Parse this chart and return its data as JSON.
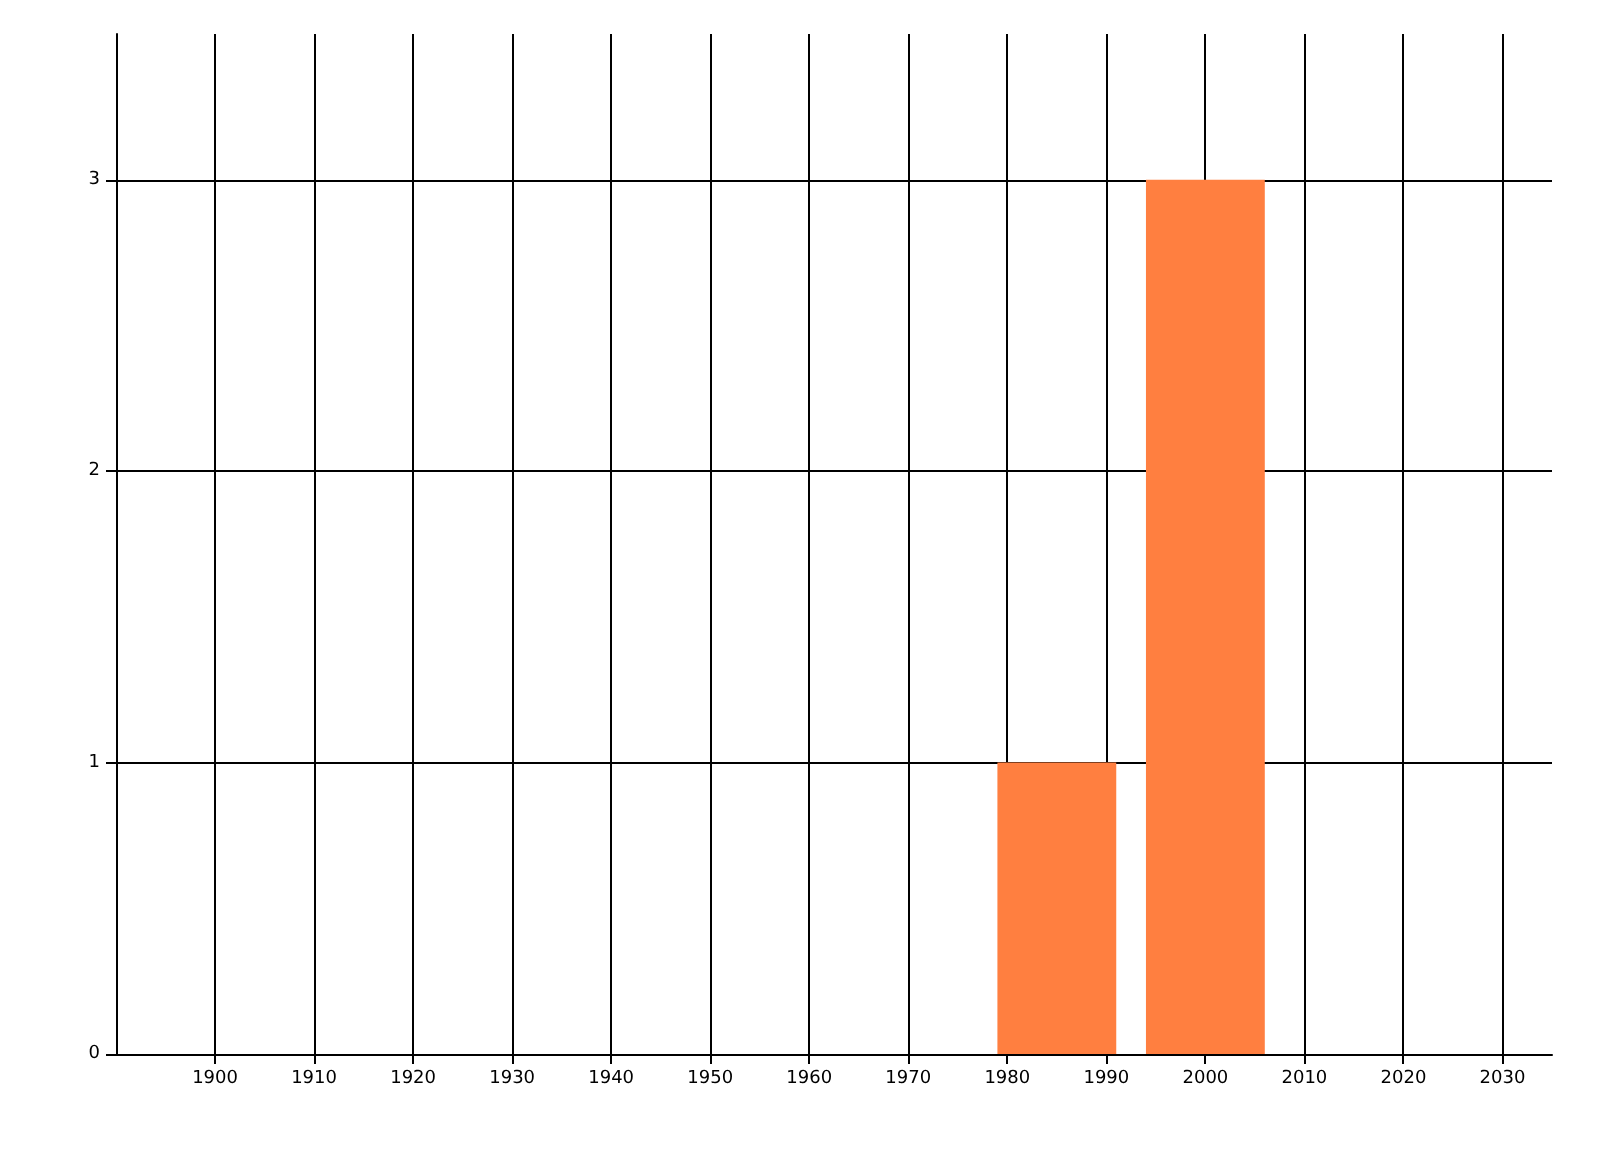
{
  "chart_data": {
    "type": "bar",
    "x": [
      1985,
      2000
    ],
    "values": [
      1,
      3
    ],
    "color": "#ff7f40",
    "xlim": [
      1890,
      2035
    ],
    "xticks": [
      1900,
      1910,
      1920,
      1930,
      1940,
      1950,
      1960,
      1970,
      1980,
      1990,
      2000,
      2010,
      2020,
      2030
    ],
    "ylim": [
      0,
      3.5
    ],
    "yticks": [
      0,
      1,
      2,
      3
    ],
    "grid": true
  }
}
